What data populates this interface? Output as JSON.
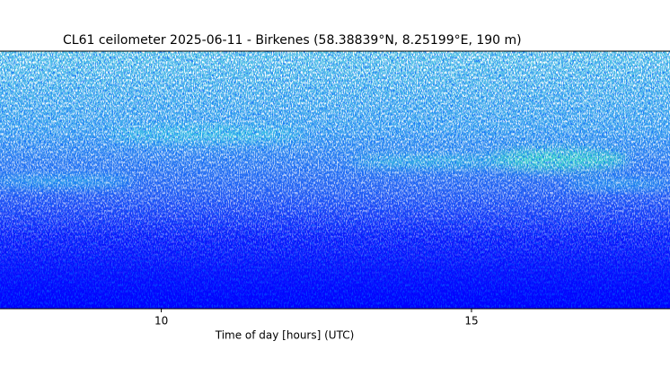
{
  "chart_data": {
    "type": "heatmap",
    "title": "CL61 ceilometer 2025-06-11 - Birkenes (58.38839°N, 8.25199°E, 190 m)",
    "x_label": "Time of day [hours] (UTC)",
    "xlim": [
      7.4,
      18.2
    ],
    "xticks": [
      10,
      15
    ]
  }
}
